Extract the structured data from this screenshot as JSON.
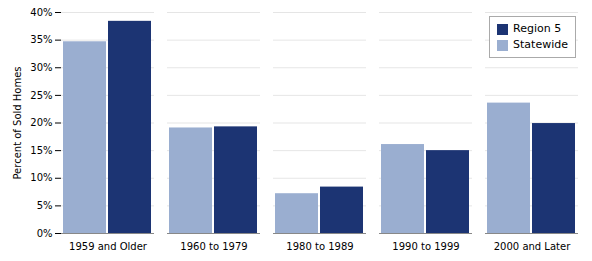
{
  "chart_data": {
    "type": "bar",
    "categories": [
      "1959 and Older",
      "1960 to 1979",
      "1980 to 1989",
      "1990 to 1999",
      "2000 and Later"
    ],
    "series": [
      {
        "name": "Statewide",
        "color": "#9aaed0",
        "values": [
          0.347,
          0.191,
          0.072,
          0.161,
          0.236
        ]
      },
      {
        "name": "Region 5",
        "color": "#1c3473",
        "values": [
          0.384,
          0.193,
          0.084,
          0.15,
          0.199
        ]
      }
    ],
    "ylabel": "Percent of Sold Homes",
    "ylim": [
      0,
      0.4
    ],
    "yticks": [
      {
        "value": 0.0,
        "label": "0%"
      },
      {
        "value": 0.05,
        "label": "5%"
      },
      {
        "value": 0.1,
        "label": "10%"
      },
      {
        "value": 0.15,
        "label": "15%"
      },
      {
        "value": 0.2,
        "label": "20%"
      },
      {
        "value": 0.25,
        "label": "25%"
      },
      {
        "value": 0.3,
        "label": "30%"
      },
      {
        "value": 0.35,
        "label": "35%"
      },
      {
        "value": 0.4,
        "label": "40%"
      }
    ],
    "grid": true,
    "legend": "upper right"
  }
}
